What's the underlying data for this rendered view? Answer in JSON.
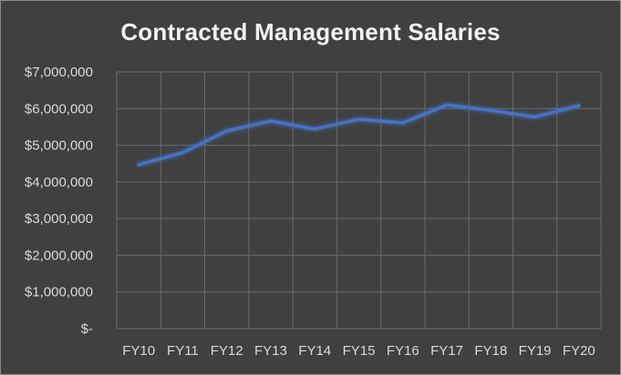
{
  "chart_data": {
    "type": "line",
    "title": "Contracted Management Salaries",
    "xlabel": "",
    "ylabel": "",
    "categories": [
      "FY10",
      "FY11",
      "FY12",
      "FY13",
      "FY14",
      "FY15",
      "FY16",
      "FY17",
      "FY18",
      "FY19",
      "FY20"
    ],
    "series": [
      {
        "values": [
          4470000,
          4800000,
          5390000,
          5660000,
          5440000,
          5710000,
          5610000,
          6100000,
          5950000,
          5770000,
          6080000
        ]
      }
    ],
    "ylim": [
      0,
      7000000
    ],
    "yticks": [
      0,
      1000000,
      2000000,
      3000000,
      4000000,
      5000000,
      6000000,
      7000000
    ],
    "ytick_labels": [
      "$-",
      "$1,000,000",
      "$2,000,000",
      "$3,000,000",
      "$4,000,000",
      "$5,000,000",
      "$6,000,000",
      "$7,000,000"
    ],
    "grid": true,
    "legend": "none",
    "colors": {
      "background": "#404040",
      "line": "#4472c4",
      "grid": "#6b6b6b",
      "text": "#d9d9d9",
      "title": "#f2f2f2"
    }
  }
}
